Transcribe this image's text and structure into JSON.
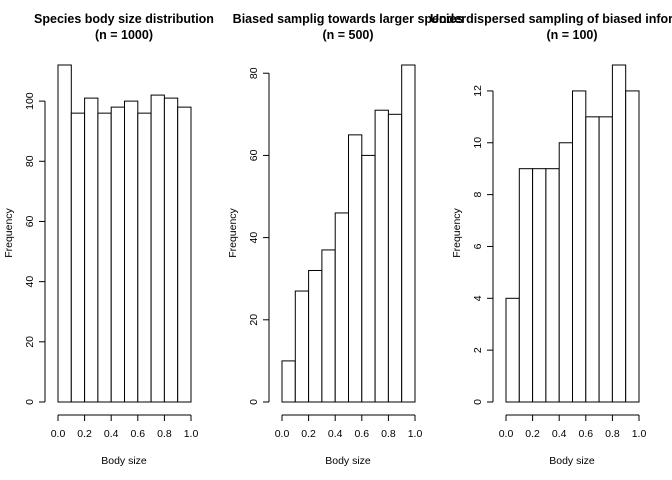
{
  "chart_data": [
    {
      "type": "bar",
      "subtype": "histogram",
      "title": "Species body size distribution",
      "subtitle": "(n = 1000)",
      "xlabel": "Body size",
      "ylabel": "Frequency",
      "bin_edges": [
        0.0,
        0.1,
        0.2,
        0.3,
        0.4,
        0.5,
        0.6,
        0.7,
        0.8,
        0.9,
        1.0
      ],
      "values": [
        112,
        96,
        101,
        96,
        98,
        100,
        96,
        102,
        101,
        98
      ],
      "xlim": [
        0,
        1
      ],
      "ylim": [
        0,
        112
      ],
      "xticks": [
        "0.0",
        "0.2",
        "0.4",
        "0.6",
        "0.8",
        "1.0"
      ],
      "yticks": [
        "0",
        "20",
        "40",
        "60",
        "80",
        "100"
      ],
      "grid": false,
      "legend": "none"
    },
    {
      "type": "bar",
      "subtype": "histogram",
      "title": "Biased samplig towards larger species",
      "subtitle": "(n = 500)",
      "xlabel": "Body size",
      "ylabel": "Frequency",
      "bin_edges": [
        0.0,
        0.1,
        0.2,
        0.3,
        0.4,
        0.5,
        0.6,
        0.7,
        0.8,
        0.9,
        1.0
      ],
      "values": [
        10,
        27,
        32,
        37,
        46,
        65,
        60,
        71,
        70,
        82
      ],
      "xlim": [
        0,
        1
      ],
      "ylim": [
        0,
        82
      ],
      "xticks": [
        "0.0",
        "0.2",
        "0.4",
        "0.6",
        "0.8",
        "1.0"
      ],
      "yticks": [
        "0",
        "20",
        "40",
        "60",
        "80"
      ],
      "grid": false,
      "legend": "none"
    },
    {
      "type": "bar",
      "subtype": "histogram",
      "title": "Underdispersed sampling of biased information",
      "subtitle": "(n = 100)",
      "xlabel": "Body size",
      "ylabel": "Frequency",
      "bin_edges": [
        0.0,
        0.1,
        0.2,
        0.3,
        0.4,
        0.5,
        0.6,
        0.7,
        0.8,
        0.9,
        1.0
      ],
      "values": [
        4,
        9,
        9,
        9,
        10,
        12,
        11,
        11,
        13,
        12
      ],
      "xlim": [
        0,
        1
      ],
      "ylim": [
        0,
        13
      ],
      "xticks": [
        "0.0",
        "0.2",
        "0.4",
        "0.6",
        "0.8",
        "1.0"
      ],
      "yticks": [
        "0",
        "2",
        "4",
        "6",
        "8",
        "10",
        "12"
      ],
      "grid": false,
      "legend": "none"
    }
  ]
}
